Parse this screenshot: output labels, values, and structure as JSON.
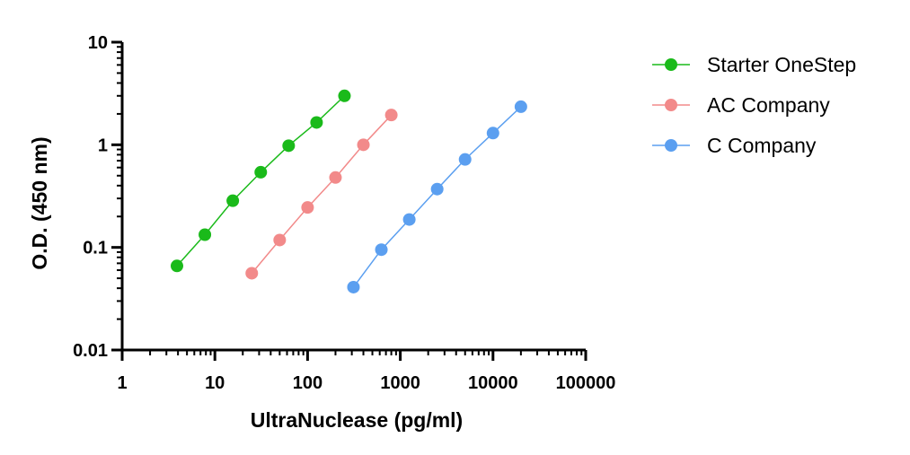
{
  "chart_data": {
    "type": "line",
    "xlabel": "UltraNuclease (pg/ml)",
    "ylabel": "O.D. (450 nm)",
    "x_scale": "log",
    "y_scale": "log",
    "xlim": [
      1,
      100000
    ],
    "ylim": [
      0.01,
      10
    ],
    "x_ticks": [
      1,
      10,
      100,
      1000,
      10000,
      100000
    ],
    "x_tick_labels": [
      "1",
      "10",
      "100",
      "1000",
      "10000",
      "100000"
    ],
    "y_ticks": [
      0.01,
      0.1,
      1,
      10
    ],
    "y_tick_labels": [
      "0.01",
      "0.1",
      "1",
      "10"
    ],
    "grid": false,
    "legend_position": "right",
    "series": [
      {
        "name": "Starter OneStep",
        "color": "#1aba1a",
        "x": [
          3.9,
          7.8,
          15.6,
          31.25,
          62.5,
          125,
          250
        ],
        "y": [
          0.066,
          0.133,
          0.285,
          0.54,
          0.98,
          1.65,
          3.0
        ]
      },
      {
        "name": "AC Company",
        "color": "#f28a8a",
        "x": [
          25,
          50,
          100,
          200,
          400,
          800
        ],
        "y": [
          0.056,
          0.118,
          0.245,
          0.48,
          1.0,
          1.95
        ]
      },
      {
        "name": "C Company",
        "color": "#5b9ff0",
        "x": [
          312.5,
          625,
          1250,
          2500,
          5000,
          10000,
          20000
        ],
        "y": [
          0.041,
          0.095,
          0.187,
          0.37,
          0.72,
          1.3,
          2.35
        ]
      }
    ]
  }
}
